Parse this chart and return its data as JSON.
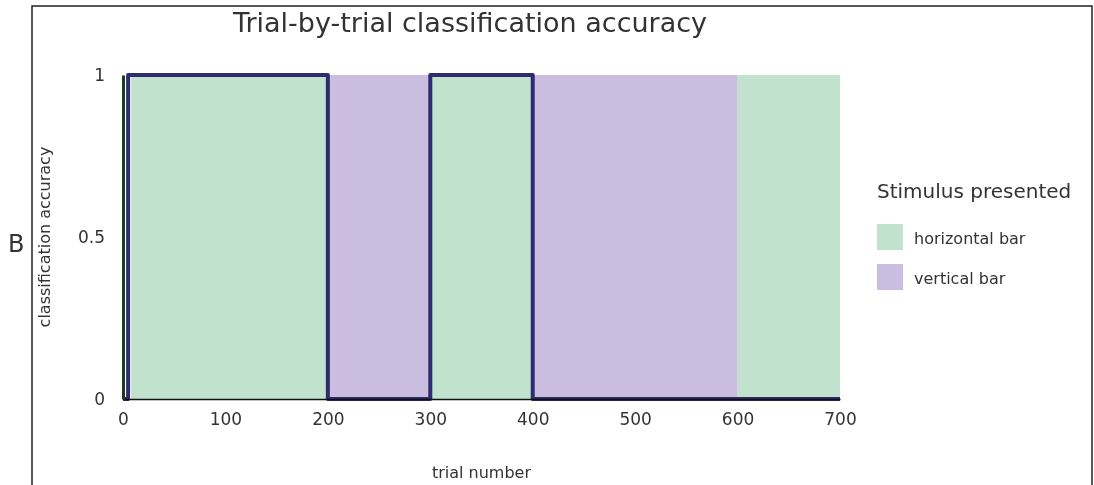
{
  "chart_data": {
    "type": "step",
    "title": "Trial-by-trial classification accuracy",
    "xlabel": "trial number",
    "ylabel": "classification accuracy",
    "legend_title": "Stimulus presented",
    "annotations": [
      "B"
    ],
    "xlim": [
      0,
      700
    ],
    "xticks": [
      0,
      100,
      200,
      300,
      400,
      500,
      600,
      700
    ],
    "ylim": [
      0,
      1
    ],
    "yticks": [
      0,
      0.5,
      1
    ],
    "legend": "right",
    "grid": false,
    "series": [
      {
        "name": "horizontal bar",
        "type": "area",
        "color": "#c1e2cc",
        "x": [
          8,
          200,
          250,
          300,
          400,
          500,
          600,
          700
        ],
        "values": [
          1,
          1,
          null,
          1,
          1,
          null,
          1,
          1
        ]
      },
      {
        "name": "vertical bar",
        "type": "area",
        "color": "#cabddf",
        "x": [
          200,
          300,
          350,
          400,
          600
        ],
        "values": [
          1,
          1,
          null,
          1,
          1
        ]
      },
      {
        "color": "#2e2b6e",
        "x": [
          0,
          5,
          200,
          300,
          400,
          700
        ],
        "values": [
          0,
          1,
          0,
          1,
          0,
          0
        ]
      }
    ]
  }
}
